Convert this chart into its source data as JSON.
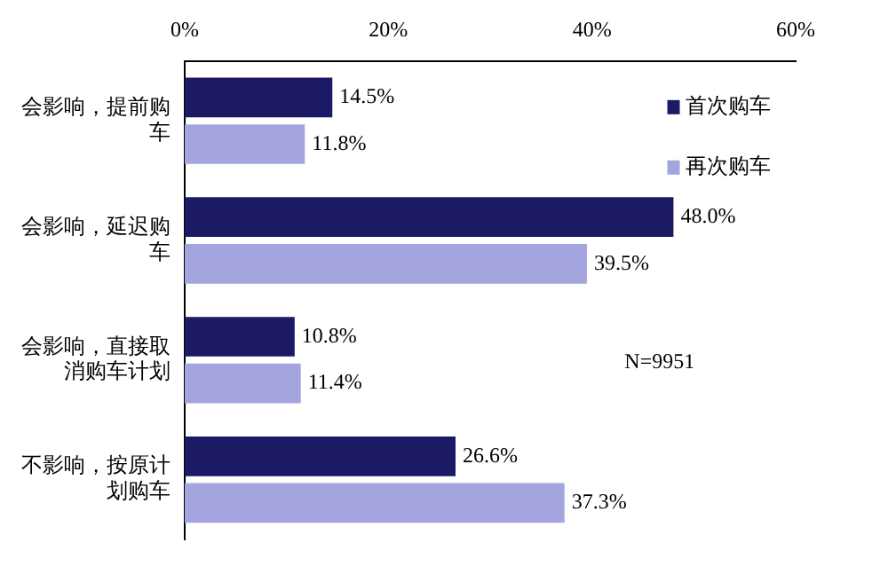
{
  "chart_data": {
    "type": "bar",
    "orientation": "horizontal",
    "categories": [
      "会影响，提前购车",
      "会影响，延迟购车",
      "会影响，直接取消购车计划",
      "不影响，按原计划购车"
    ],
    "series": [
      {
        "name": "首次购车",
        "color": "#1c1a64",
        "values": [
          14.5,
          48.0,
          10.8,
          26.6
        ],
        "value_labels": [
          "14.5%",
          "48.0%",
          "10.8%",
          "26.6%"
        ]
      },
      {
        "name": "再次购车",
        "color": "#a4a4de",
        "values": [
          11.8,
          39.5,
          11.4,
          37.3
        ],
        "value_labels": [
          "11.8%",
          "39.5%",
          "11.4%",
          "37.3%"
        ]
      }
    ],
    "xlim": [
      0,
      60
    ],
    "xticks": [
      {
        "value": 0,
        "label": "0%"
      },
      {
        "value": 20,
        "label": "20%"
      },
      {
        "value": 40,
        "label": "40%"
      },
      {
        "value": 60,
        "label": "60%"
      }
    ],
    "grid": false,
    "legend": "top right",
    "annotations": [
      "N=9951"
    ]
  }
}
